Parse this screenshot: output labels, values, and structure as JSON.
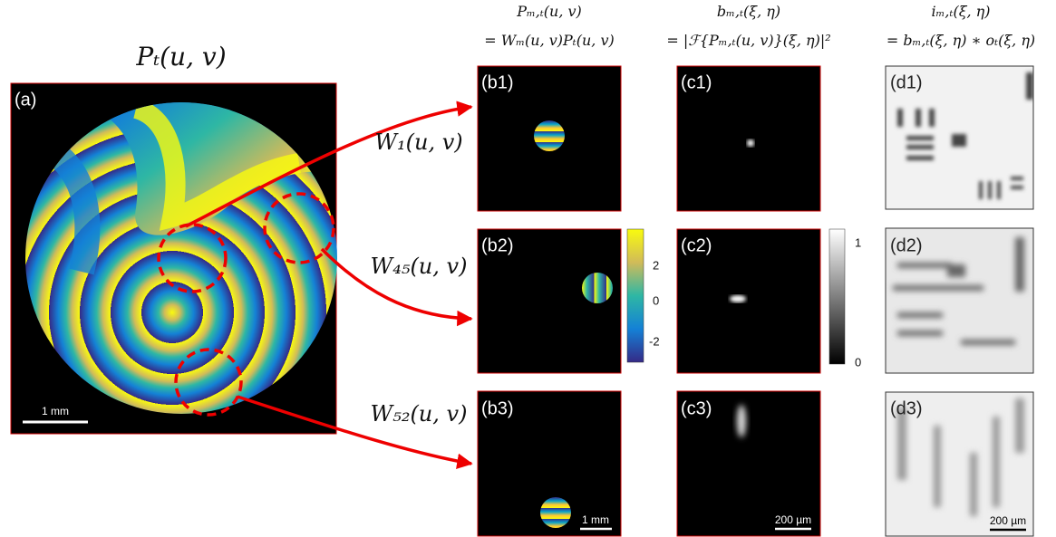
{
  "panel_a": {
    "title": "Pₜ(u, v)",
    "label": "(a)",
    "scale_bar": "1 mm"
  },
  "columns": [
    {
      "header": [
        "Pₘ,ₜ(u, v)",
        "= Wₘ(u, v)Pₜ(u, v)"
      ]
    },
    {
      "header": [
        "bₘ,ₜ(ξ, η)",
        "= |ℱ{Pₘ,ₜ(u, v)}(ξ, η)|²"
      ]
    },
    {
      "header": [
        "iₘ,ₜ(ξ, η)",
        "= bₘ,ₜ(ξ, η) ∗ oₜ(ξ, η)"
      ]
    }
  ],
  "windows": [
    "W₁(u, v)",
    "W₄₅(u, v)",
    "W₅₂(u, v)"
  ],
  "panels": {
    "b": [
      "(b1)",
      "(b2)",
      "(b3)"
    ],
    "c": [
      "(c1)",
      "(c2)",
      "(c3)"
    ],
    "d": [
      "(d1)",
      "(d2)",
      "(d3)"
    ]
  },
  "colorbars": {
    "phase": {
      "ticks": [
        2,
        0,
        -2
      ]
    },
    "intensity": {
      "ticks": [
        1,
        0
      ]
    }
  },
  "scale_bars": {
    "b3": "1 mm",
    "c3": "200 µm",
    "d3": "200 µm"
  }
}
